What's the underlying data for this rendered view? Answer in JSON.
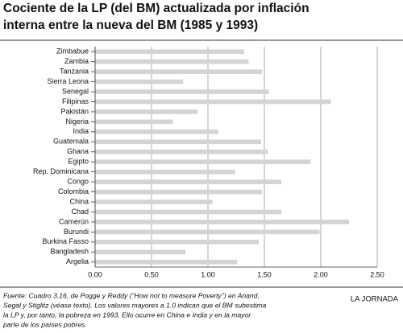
{
  "chart_data": {
    "type": "bar",
    "orientation": "horizontal",
    "title": [
      "Cociente de la LP (del BM) actualizada por inflación",
      "interna entre la nueva del BM (1985 y 1993)"
    ],
    "categories": [
      "Zimbabue",
      "Zambia",
      "Tanzania",
      "Sierra Leona",
      "Senegal",
      "Filipinas",
      "Pakistán",
      "Nigeria",
      "India",
      "Guatemala",
      "Ghana",
      "Egipto",
      "Rep. Dominicana",
      "Congo",
      "Colombia",
      "China",
      "Chad",
      "Camerún",
      "Burundi",
      "Burkina Fasso",
      "Bangladesh",
      "Argelia"
    ],
    "values": [
      1.32,
      1.36,
      1.48,
      0.78,
      1.54,
      2.09,
      0.91,
      0.69,
      1.09,
      1.47,
      1.53,
      1.91,
      1.24,
      1.65,
      1.48,
      1.04,
      1.65,
      2.25,
      1.99,
      1.45,
      0.8,
      1.26
    ],
    "color": "#d4d4d4",
    "xlim": [
      0,
      2.5
    ],
    "xticks": [
      {
        "value": 0,
        "label": "0.00"
      },
      {
        "value": 0.5,
        "label": "0.50"
      },
      {
        "value": 1,
        "label": "1.00"
      },
      {
        "value": 1.5,
        "label": "1.50"
      },
      {
        "value": 2,
        "label": "2.00"
      },
      {
        "value": 2.5,
        "label": "2.50"
      }
    ],
    "grid": true,
    "source": [
      "Fuente: Cuadro 3.16, de Pogge y Reddy (“How not to measure Poverty”) en Anand,",
      "Segal y Stiglitz (véase texto). Los valores mayores a 1.0 indican que el BM subestima",
      "la LP y, por tanto, la pobreza en 1993. Ello ocurre en China e India y en la mayor",
      "parte de los países pobres."
    ],
    "credit": "LA JORNADA"
  }
}
